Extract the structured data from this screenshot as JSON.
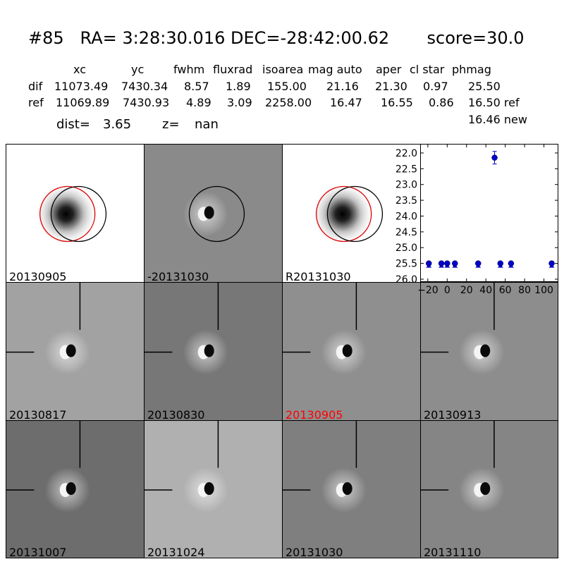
{
  "header": {
    "title": "#85   RA= 3:28:30.016 DEC=-28:42:00.62       score=30.0",
    "columns": [
      "xc",
      "yc",
      "fwhm",
      "fluxrad",
      "isoarea",
      "mag auto",
      "aper",
      "cl star",
      "phmag"
    ],
    "rows": [
      {
        "label": "dif",
        "values": [
          "11073.49",
          "7430.34",
          "8.57",
          "1.89",
          "155.00",
          "21.16",
          "21.30",
          "0.97",
          "25.50"
        ]
      },
      {
        "label": "ref",
        "values": [
          "11069.89",
          "7430.93",
          "4.89",
          "3.09",
          "2258.00",
          "16.47",
          "16.55",
          "0.86",
          "16.50 ref"
        ]
      }
    ],
    "extra_phmag": "16.46 new",
    "dist_label": "dist=",
    "dist_value": "3.65",
    "z_label": "z=",
    "z_value": "nan"
  },
  "tiles": [
    {
      "label": "20130905",
      "type": "ref",
      "bg": "#ffffff",
      "label_color": "#000000"
    },
    {
      "label": "-20131030",
      "type": "dipole",
      "bg": "#8a8a8a",
      "label_color": "#000000"
    },
    {
      "label": "R20131030",
      "type": "ref",
      "bg": "#ffffff",
      "label_color": "#000000"
    },
    {
      "label": "20130817",
      "type": "dipole",
      "bg": "#a2a2a2",
      "label_color": "#000000"
    },
    {
      "label": "20130830",
      "type": "dipole",
      "bg": "#777777",
      "label_color": "#000000"
    },
    {
      "label": "20130905",
      "type": "dipole",
      "bg": "#8f8f8f",
      "label_color": "#ff0000"
    },
    {
      "label": "20130913",
      "type": "dipole",
      "bg": "#8d8d8d",
      "label_color": "#000000"
    },
    {
      "label": "20131007",
      "type": "dipole",
      "bg": "#6d6d6d",
      "label_color": "#000000"
    },
    {
      "label": "20131024",
      "type": "dipole",
      "bg": "#b0b0b0",
      "label_color": "#000000"
    },
    {
      "label": "20131030",
      "type": "dipole",
      "bg": "#7f7f7f",
      "label_color": "#000000"
    },
    {
      "label": "20131110",
      "type": "dipole",
      "bg": "#858585",
      "label_color": "#000000"
    }
  ],
  "chart_data": {
    "type": "scatter",
    "title": "",
    "xlabel": "",
    "ylabel": "",
    "xlim": [
      -25,
      112
    ],
    "ylim": [
      26.0,
      21.8
    ],
    "y_inverted": true,
    "xticks": [
      -20,
      0,
      20,
      40,
      60,
      80,
      100
    ],
    "xtick_labels": [
      "−20",
      "0",
      "20",
      "40",
      "60",
      "80",
      "100"
    ],
    "yticks": [
      22.0,
      22.5,
      23.0,
      23.5,
      24.0,
      24.5,
      25.0,
      25.5,
      26.0
    ],
    "ytick_labels": [
      "22.0",
      "22.5",
      "23.0",
      "23.5",
      "24.0",
      "24.5",
      "25.0",
      "25.5",
      "26.0"
    ],
    "color": "#0000cc",
    "points": [
      {
        "x": -19,
        "y": 25.5,
        "kind": "limit"
      },
      {
        "x": -6,
        "y": 25.5,
        "kind": "limit"
      },
      {
        "x": 0,
        "y": 25.5,
        "kind": "limit"
      },
      {
        "x": 8,
        "y": 25.5,
        "kind": "limit"
      },
      {
        "x": 32,
        "y": 25.5,
        "kind": "limit"
      },
      {
        "x": 49,
        "y": 22.15,
        "kind": "detection",
        "err": 0.2
      },
      {
        "x": 55,
        "y": 25.5,
        "kind": "limit"
      },
      {
        "x": 66,
        "y": 25.5,
        "kind": "limit"
      },
      {
        "x": 108,
        "y": 25.5,
        "kind": "limit"
      }
    ]
  }
}
